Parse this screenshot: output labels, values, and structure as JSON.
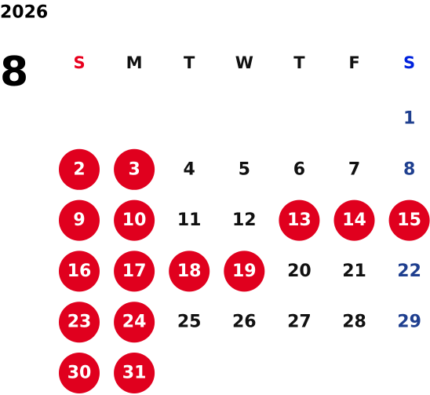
{
  "year": "2026",
  "month": "8",
  "weekdays": [
    "S",
    "M",
    "T",
    "W",
    "T",
    "F",
    "S"
  ],
  "weeks": [
    [
      null,
      null,
      null,
      null,
      null,
      null,
      {
        "day": 1,
        "marked": false
      }
    ],
    [
      {
        "day": 2,
        "marked": true
      },
      {
        "day": 3,
        "marked": true
      },
      {
        "day": 4,
        "marked": false
      },
      {
        "day": 5,
        "marked": false
      },
      {
        "day": 6,
        "marked": false
      },
      {
        "day": 7,
        "marked": false
      },
      {
        "day": 8,
        "marked": false
      }
    ],
    [
      {
        "day": 9,
        "marked": true
      },
      {
        "day": 10,
        "marked": true
      },
      {
        "day": 11,
        "marked": false
      },
      {
        "day": 12,
        "marked": false
      },
      {
        "day": 13,
        "marked": true
      },
      {
        "day": 14,
        "marked": true
      },
      {
        "day": 15,
        "marked": true
      }
    ],
    [
      {
        "day": 16,
        "marked": true
      },
      {
        "day": 17,
        "marked": true
      },
      {
        "day": 18,
        "marked": true
      },
      {
        "day": 19,
        "marked": true
      },
      {
        "day": 20,
        "marked": false
      },
      {
        "day": 21,
        "marked": false
      },
      {
        "day": 22,
        "marked": false
      }
    ],
    [
      {
        "day": 23,
        "marked": true
      },
      {
        "day": 24,
        "marked": true
      },
      {
        "day": 25,
        "marked": false
      },
      {
        "day": 26,
        "marked": false
      },
      {
        "day": 27,
        "marked": false
      },
      {
        "day": 28,
        "marked": false
      },
      {
        "day": 29,
        "marked": false
      }
    ],
    [
      {
        "day": 30,
        "marked": true
      },
      {
        "day": 31,
        "marked": true
      },
      null,
      null,
      null,
      null,
      null
    ]
  ]
}
